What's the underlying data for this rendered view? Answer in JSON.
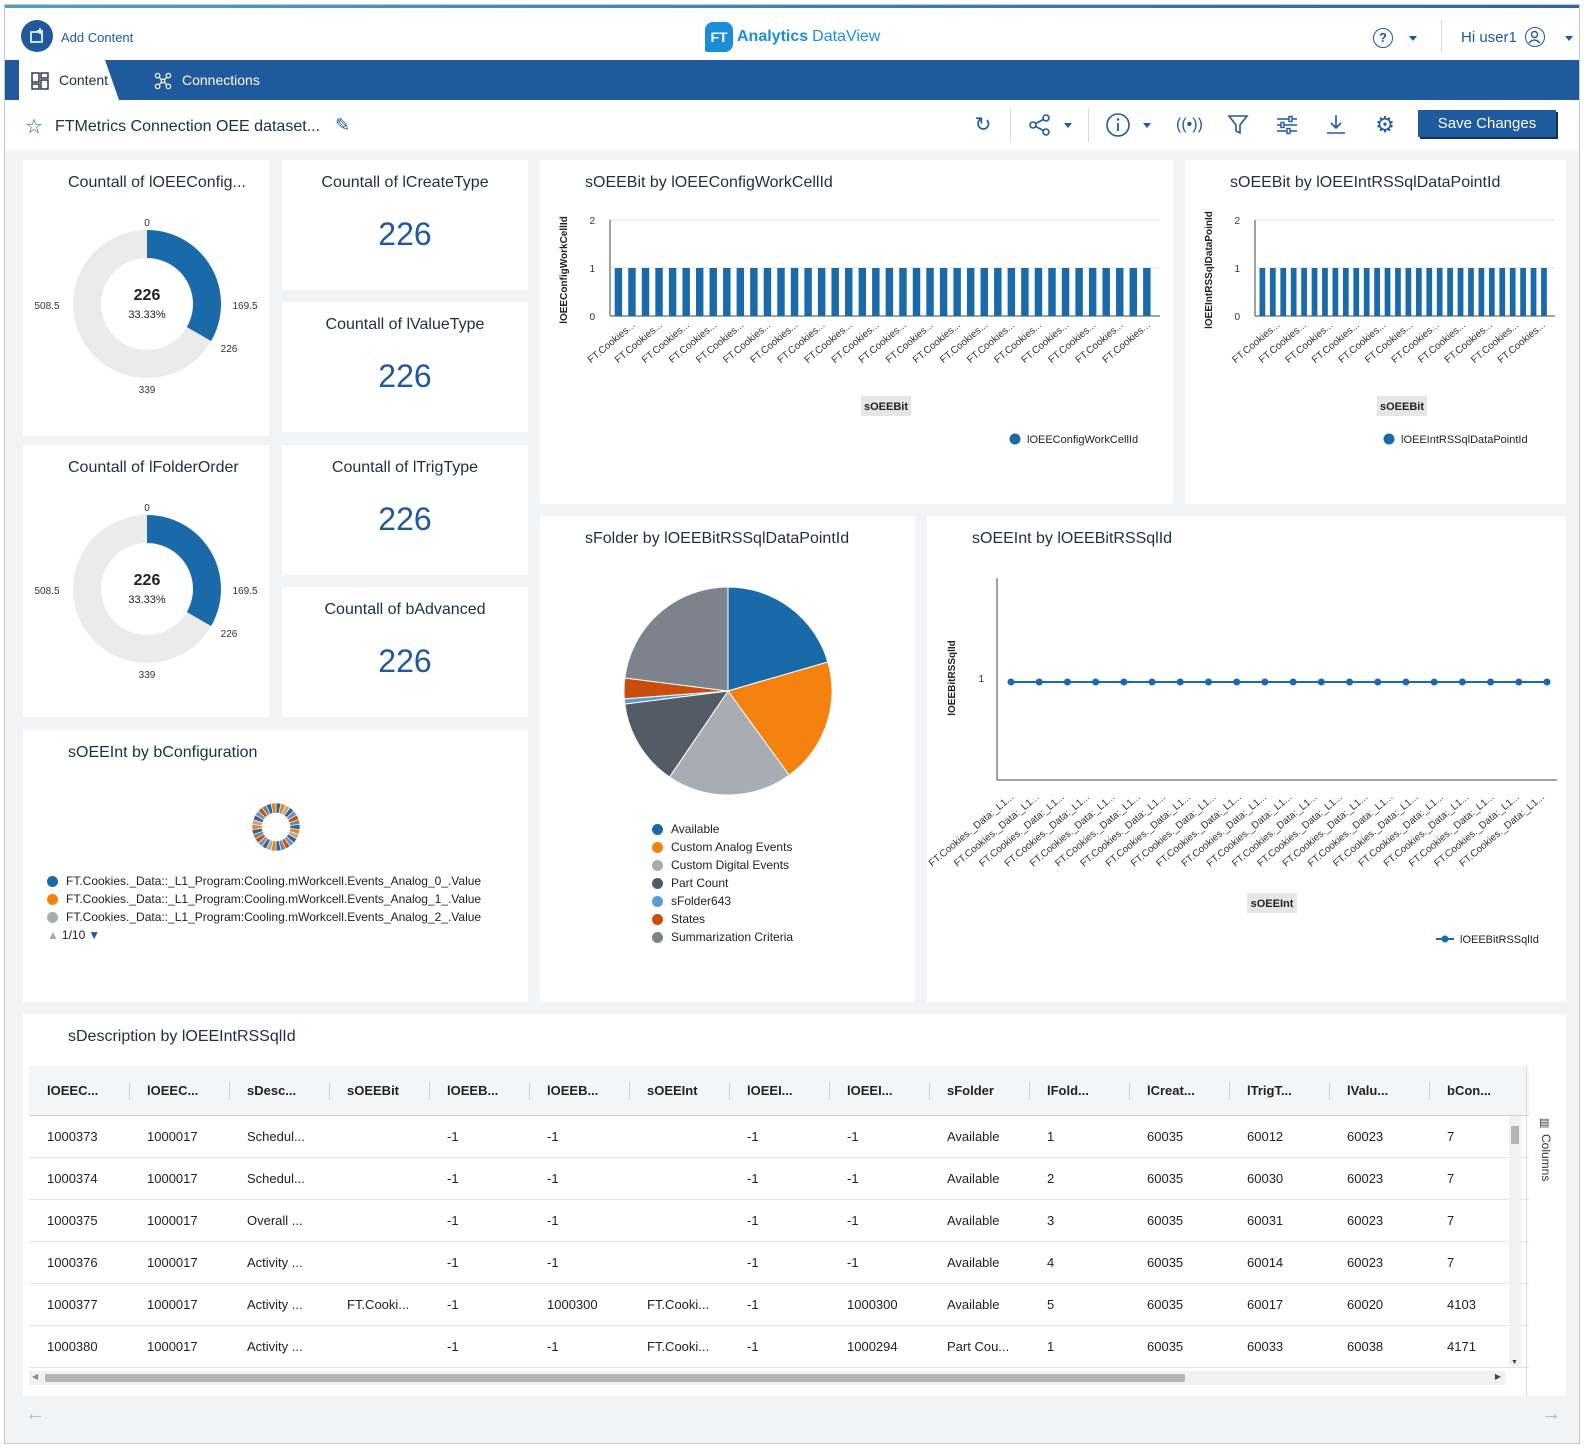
{
  "header": {
    "add_content_label": "Add Content",
    "logo_badge": "FT",
    "logo_primary": "Analytics",
    "logo_secondary": "DataView",
    "help_icon": "help-circle-icon",
    "user_greeting": "Hi user1"
  },
  "tabs": [
    {
      "label": "Content",
      "icon": "grid-icon",
      "active": true
    },
    {
      "label": "Connections",
      "icon": "network-icon",
      "active": false
    }
  ],
  "toolbar": {
    "dashboard_title": "FTMetrics Connection OEE dataset...",
    "save_label": "Save Changes",
    "icons": [
      "refresh-icon",
      "share-icon",
      "info-icon",
      "broadcast-icon",
      "filter-icon",
      "sliders-icon",
      "download-icon",
      "gear-icon"
    ]
  },
  "colors": {
    "brand": "#1e5a9c",
    "series_blue": "#1a6aaa",
    "orange": "#f5820f",
    "light_gray": "#a8adb5",
    "dark_slate": "#525b66",
    "light_blue": "#5b9bd5",
    "dark_orange": "#c94e0c",
    "mid_gray": "#7d838c"
  },
  "cards": {
    "donut1": {
      "title": "Countall of lOEEConfig...",
      "center_value": "226",
      "center_pct": "33.33%",
      "labels": [
        "0",
        "169.5",
        "226",
        "339",
        "508.5"
      ]
    },
    "kpi_create": {
      "title": "Countall of lCreateType",
      "value": "226"
    },
    "kpi_value": {
      "title": "Countall of lValueType",
      "value": "226"
    },
    "donut2": {
      "title": "Countall of lFolderOrder",
      "center_value": "226",
      "center_pct": "33.33%",
      "labels": [
        "0",
        "169.5",
        "226",
        "339",
        "508.5"
      ]
    },
    "kpi_trig": {
      "title": "Countall of lTrigType",
      "value": "226"
    },
    "kpi_adv": {
      "title": "Countall of bAdvanced",
      "value": "226"
    },
    "bar1": {
      "title": "sOEEBit by lOEEConfigWorkCellId",
      "ylabel": "lOEEConfigWorkCellId",
      "xaxis_badge": "sOEEBit",
      "legend": "lOEEConfigWorkCellId",
      "tick_label": "FT.Cookies..."
    },
    "bar2": {
      "title": "sOEEBit by lOEEIntRSSqlDataPointId",
      "ylabel": "lOEEIntRSSqlDataPoinId",
      "xaxis_badge": "sOEEBit",
      "legend": "lOEEIntRSSqlDataPointId",
      "tick_label": "FT.Cookies..."
    },
    "pie": {
      "title": "sFolder by lOEEBitRSSqlDataPointId",
      "legend": [
        {
          "label": "Available",
          "color": "#1a6aaa"
        },
        {
          "label": "Custom Analog Events",
          "color": "#f5820f"
        },
        {
          "label": "Custom Digital Events",
          "color": "#a8adb5"
        },
        {
          "label": "Part Count",
          "color": "#525b66"
        },
        {
          "label": "sFolder643",
          "color": "#5b9bd5"
        },
        {
          "label": "States",
          "color": "#c94e0c"
        },
        {
          "label": "Summarization Criteria",
          "color": "#7d838c"
        }
      ]
    },
    "line": {
      "title": "sOEEInt by lOEEBitRSSqlId",
      "ylabel": "lOEEBitRSSqlId",
      "xaxis_badge": "sOEEInt",
      "legend": "lOEEBitRSSqlId",
      "tick_label": "FT.Cookies._Data:_L1..."
    },
    "small_donut": {
      "title": "sOEEInt by bConfiguration",
      "legend": [
        {
          "label": "FT.Cookies._Data::_L1_Program:Cooling.mWorkcell.Events_Analog_0_.Value",
          "color": "#1a6aaa"
        },
        {
          "label": "FT.Cookies._Data::_L1_Program:Cooling.mWorkcell.Events_Analog_1_.Value",
          "color": "#f5820f"
        },
        {
          "label": "FT.Cookies._Data::_L1_Program:Cooling.mWorkcell.Events_Analog_2_.Value",
          "color": "#a8adb5"
        }
      ],
      "pager": "1/10"
    },
    "table": {
      "title": "sDescription by lOEEIntRSSqlId",
      "columns": [
        "lOEEC...",
        "lOEEC...",
        "sDesc...",
        "sOEEBit",
        "lOEEB...",
        "lOEEB...",
        "sOEEInt",
        "lOEEI...",
        "lOEEI...",
        "sFolder",
        "lFold...",
        "lCreat...",
        "lTrigT...",
        "lValu...",
        "bCon..."
      ],
      "rows": [
        [
          "1000373",
          "1000017",
          "Schedul...",
          "",
          "-1",
          "-1",
          "",
          "-1",
          "-1",
          "Available",
          "1",
          "60035",
          "60012",
          "60023",
          "7"
        ],
        [
          "1000374",
          "1000017",
          "Schedul...",
          "",
          "-1",
          "-1",
          "",
          "-1",
          "-1",
          "Available",
          "2",
          "60035",
          "60030",
          "60023",
          "7"
        ],
        [
          "1000375",
          "1000017",
          "Overall ...",
          "",
          "-1",
          "-1",
          "",
          "-1",
          "-1",
          "Available",
          "3",
          "60035",
          "60031",
          "60023",
          "7"
        ],
        [
          "1000376",
          "1000017",
          "Activity ...",
          "",
          "-1",
          "-1",
          "",
          "-1",
          "-1",
          "Available",
          "4",
          "60035",
          "60014",
          "60023",
          "7"
        ],
        [
          "1000377",
          "1000017",
          "Activity ...",
          "FT.Cooki...",
          "-1",
          "1000300",
          "FT.Cooki...",
          "-1",
          "1000300",
          "Available",
          "5",
          "60035",
          "60017",
          "60020",
          "4103"
        ],
        [
          "1000380",
          "1000017",
          "Activity ...",
          "",
          "-1",
          "-1",
          "FT.Cooki...",
          "-1",
          "1000294",
          "Part Cou...",
          "1",
          "60035",
          "60033",
          "60038",
          "4171"
        ]
      ],
      "columns_panel_label": "Columns"
    }
  },
  "chart_data": [
    {
      "type": "pie",
      "subtype": "donut",
      "title": "Countall of lOEEConfig...",
      "slices": [
        {
          "label": "226",
          "value": 226
        }
      ],
      "total": 678,
      "center_value": "226",
      "center_pct": "33.33%"
    },
    {
      "type": "pie",
      "subtype": "donut",
      "title": "Countall of lFolderOrder",
      "slices": [
        {
          "label": "226",
          "value": 226
        }
      ],
      "total": 678,
      "center_value": "226",
      "center_pct": "33.33%"
    },
    {
      "type": "bar",
      "title": "sOEEBit by lOEEConfigWorkCellId",
      "ylabel": "lOEEConfigWorkCellId",
      "ylim": [
        0,
        2
      ],
      "yticks": [
        0,
        1,
        2
      ],
      "values": [
        1,
        1,
        1,
        1,
        1,
        1,
        1,
        1,
        1,
        1,
        1,
        1,
        1,
        1,
        1,
        1,
        1,
        1,
        1,
        1,
        1,
        1,
        1,
        1,
        1,
        1,
        1,
        1,
        1,
        1,
        1,
        1,
        1,
        1,
        1,
        1,
        1,
        1,
        1,
        1
      ],
      "series": [
        {
          "name": "lOEEConfigWorkCellId"
        }
      ]
    },
    {
      "type": "bar",
      "title": "sOEEBit by lOEEIntRSSqlDataPointId",
      "ylabel": "lOEEIntRSSqlDataPoinId",
      "ylim": [
        0,
        2
      ],
      "yticks": [
        0,
        1,
        2
      ],
      "values": [
        1,
        1,
        1,
        1,
        1,
        1,
        1,
        1,
        1,
        1,
        1,
        1,
        1,
        1,
        1,
        1,
        1,
        1,
        1,
        1,
        1,
        1,
        1,
        1,
        1,
        1,
        1,
        1
      ],
      "series": [
        {
          "name": "lOEEIntRSSqlDataPointId"
        }
      ]
    },
    {
      "type": "pie",
      "title": "sFolder by lOEEBitRSSqlDataPointId",
      "slices": [
        {
          "label": "Available",
          "value": 20.5
        },
        {
          "label": "Custom Analog Events",
          "value": 19.5
        },
        {
          "label": "Custom Digital Events",
          "value": 19.5
        },
        {
          "label": "Part Count",
          "value": 13.5
        },
        {
          "label": "sFolder643",
          "value": 0.8
        },
        {
          "label": "States",
          "value": 3.2
        },
        {
          "label": "Summarization Criteria",
          "value": 23.0
        }
      ]
    },
    {
      "type": "line",
      "title": "sOEEInt by lOEEBitRSSqlId",
      "ylabel": "lOEEBitRSSqlId",
      "yticks": [
        1
      ],
      "values": [
        1,
        1,
        1,
        1,
        1,
        1,
        1,
        1,
        1,
        1,
        1,
        1,
        1,
        1,
        1,
        1,
        1,
        1,
        1,
        1
      ],
      "series": [
        {
          "name": "lOEEBitRSSqlId"
        }
      ]
    },
    {
      "type": "pie",
      "subtype": "donut",
      "title": "sOEEInt by bConfiguration",
      "slices_count": 30
    }
  ]
}
